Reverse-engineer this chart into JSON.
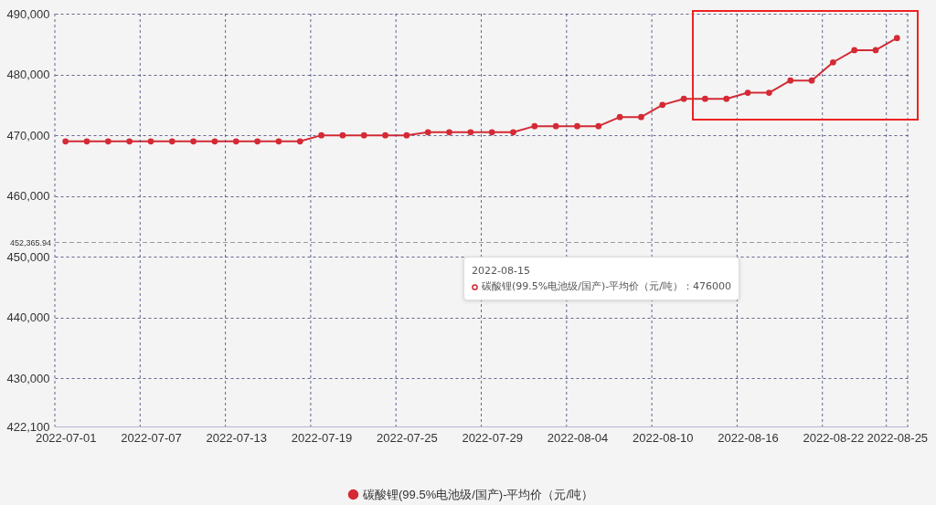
{
  "chart_data": {
    "type": "line",
    "categories": [
      "2022-07-01",
      null,
      null,
      null,
      "2022-07-07",
      null,
      null,
      null,
      "2022-07-13",
      null,
      null,
      null,
      "2022-07-19",
      null,
      null,
      null,
      "2022-07-25",
      null,
      null,
      null,
      "2022-07-29",
      null,
      null,
      null,
      "2022-08-04",
      null,
      null,
      null,
      "2022-08-10",
      null,
      null,
      null,
      "2022-08-16",
      null,
      null,
      null,
      "2022-08-22",
      null,
      null,
      "2022-08-25"
    ],
    "series": [
      {
        "name": "碳酸锂(99.5%电池级/国产)-平均价（元/吨）",
        "color": "#d42a35",
        "values": [
          469000,
          469000,
          469000,
          469000,
          469000,
          469000,
          469000,
          469000,
          469000,
          469000,
          469000,
          469000,
          470000,
          470000,
          470000,
          470000,
          470000,
          470500,
          470500,
          470500,
          470500,
          470500,
          471500,
          471500,
          471500,
          471500,
          473000,
          473000,
          475000,
          476000,
          476000,
          476000,
          477000,
          477000,
          479000,
          479000,
          482000,
          484000,
          484000,
          486000
        ]
      }
    ],
    "ylim": [
      422100,
      490000
    ],
    "yticks": [
      {
        "value": 422100,
        "label": "422,100"
      },
      {
        "value": 430000,
        "label": "430,000"
      },
      {
        "value": 440000,
        "label": "440,000"
      },
      {
        "value": 450000,
        "label": "450,000"
      },
      {
        "value": 460000,
        "label": "460,000"
      },
      {
        "value": 470000,
        "label": "470,000"
      },
      {
        "value": 480000,
        "label": "480,000"
      },
      {
        "value": 490000,
        "label": "490,000"
      }
    ],
    "grid": true,
    "legend": "bottom",
    "marker": "circle",
    "ref_lines": [
      {
        "axis": "y",
        "value": 452365.94,
        "label": "452,365.94",
        "color": "#9a9a9a"
      }
    ],
    "annotations": [
      "2022-08-15",
      "碳酸锂(99.5%电池级/国产)-平均价（元/吨）：476000"
    ]
  }
}
